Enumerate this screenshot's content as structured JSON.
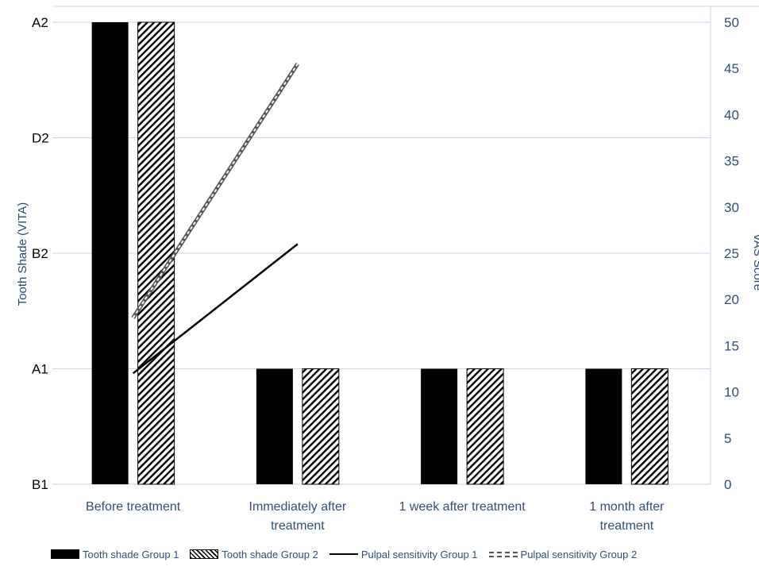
{
  "chart_data": {
    "type": "bar",
    "categories": [
      [
        "Before treatment"
      ],
      [
        "Immediately after",
        "treatment"
      ],
      [
        "1 week after treatment"
      ],
      [
        "1  month after",
        "treatment"
      ]
    ],
    "y_left": {
      "label": "Tooth Shade (VITA)",
      "ticks": [
        "B1",
        "A1",
        "B2",
        "D2",
        "A2"
      ]
    },
    "y_right": {
      "label": "VAS Score",
      "range": [
        0,
        50
      ],
      "ticks": [
        "0",
        "5",
        "10",
        "15",
        "20",
        "25",
        "30",
        "35",
        "40",
        "45",
        "50"
      ]
    },
    "grid": true,
    "legend_position": "bottom",
    "bar_series": [
      {
        "name": "Tooth shade Group 1",
        "pattern": "solid",
        "values": [
          "A2",
          "A1",
          "A1",
          "A1"
        ]
      },
      {
        "name": "Tooth shade Group 2",
        "pattern": "hatched",
        "values": [
          "A2",
          "A1",
          "A1",
          "A1"
        ]
      }
    ],
    "line_series": [
      {
        "name": "Pulpal sensitivity Group 1",
        "style": "solid",
        "values": [
          12,
          26,
          null,
          null
        ]
      },
      {
        "name": "Pulpal sensitivity Group 2",
        "style": "dashed",
        "values": [
          18,
          45.5,
          null,
          null
        ]
      }
    ]
  },
  "legend": {
    "items": [
      {
        "label": "Tooth shade Group 1",
        "swatch": "solid"
      },
      {
        "label": "Tooth shade Group 2",
        "swatch": "hatch"
      },
      {
        "label": "Pulpal sensitivity Group 1",
        "swatch": "line"
      },
      {
        "label": "Pulpal sensitivity Group 2",
        "swatch": "dash"
      }
    ]
  },
  "colors": {
    "bar_fill": "#000000",
    "axis_text_left": "#000000",
    "axis_text_right": "#2f4e7a",
    "axis_title": "#24477f",
    "gridline": "#c9d6e8",
    "line_group2": "#555555"
  }
}
